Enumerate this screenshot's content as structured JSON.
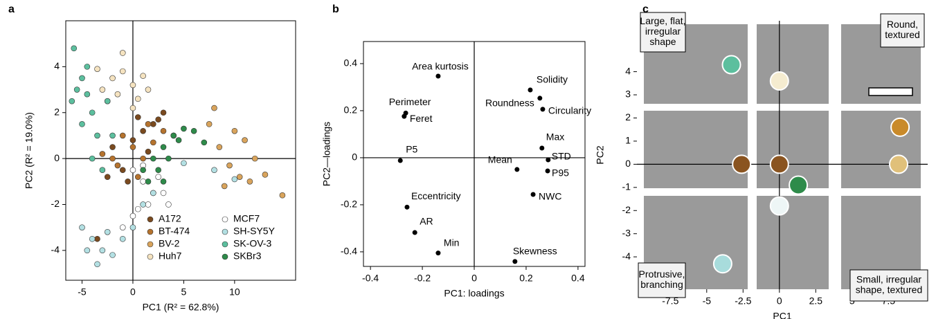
{
  "chart_data": [
    {
      "type": "scatter",
      "panel": "a",
      "xlabel": "PC1 (R² = 62.8%)",
      "ylabel": "PC2 (R² = 19.0%)",
      "xlim": [
        -6.6,
        16.0
      ],
      "ylim": [
        -5.3,
        6.0
      ],
      "xticks": [
        -5,
        0,
        5,
        10
      ],
      "yticks": [
        -4,
        -2,
        0,
        2,
        4
      ],
      "legend": "lower right",
      "series": [
        {
          "name": "A172",
          "color": "#7a4a1f",
          "x": [
            -2,
            -1,
            0,
            1,
            2,
            3,
            -0.5,
            -3.5,
            1.5,
            2.5,
            -2.5,
            0.5
          ],
          "y": [
            0.5,
            -0.5,
            0.8,
            1.2,
            1.5,
            2,
            -1,
            -3.5,
            0.3,
            1.7,
            -0.8,
            1.8
          ]
        },
        {
          "name": "BT-474",
          "color": "#b5732e",
          "x": [
            0,
            1,
            2,
            -1,
            -2,
            3,
            -3,
            0.5,
            1.5,
            -1.5,
            4
          ],
          "y": [
            0.5,
            0,
            0.7,
            1,
            0,
            1.2,
            0.2,
            -0.8,
            1.5,
            -0.3,
            1
          ]
        },
        {
          "name": "BV-2",
          "color": "#d9a45c",
          "x": [
            7.5,
            8.5,
            9.5,
            10.5,
            11.5,
            12,
            13,
            14.7,
            8,
            10,
            9,
            11
          ],
          "y": [
            1.5,
            0.5,
            -0.3,
            -0.8,
            -1,
            0,
            -0.7,
            -1.6,
            2.2,
            1.2,
            -1.2,
            0.8
          ]
        },
        {
          "name": "Huh7",
          "color": "#f5e3c0",
          "x": [
            -3,
            -2,
            -1,
            0,
            1,
            -2.5,
            -1.5,
            0.5,
            -3.5,
            -1,
            1.5,
            0
          ],
          "y": [
            3,
            3.5,
            3.8,
            3.2,
            3.6,
            2.5,
            2.8,
            2.6,
            3.9,
            4.6,
            3,
            2.2
          ]
        },
        {
          "name": "MCF7",
          "color": "#ffffff",
          "x": [
            0,
            1,
            2,
            1.5,
            0.5,
            2.5,
            3,
            0,
            -1,
            1,
            3.5
          ],
          "y": [
            -0.5,
            -1,
            -1.5,
            -2,
            -2.2,
            -0.8,
            -1.5,
            -2.5,
            -3,
            -0.3,
            -2
          ]
        },
        {
          "name": "SH-SY5Y",
          "color": "#b3e0e3",
          "x": [
            -5,
            -4,
            -3,
            -2,
            -1,
            0,
            -3.5,
            -4.5,
            -2.5,
            1,
            2,
            5,
            8,
            10
          ],
          "y": [
            -3,
            -3.5,
            -4,
            -4.2,
            -3.5,
            -3,
            -4.6,
            -4,
            -3.2,
            -2,
            -1.5,
            -0.2,
            -0.5,
            -0.9
          ]
        },
        {
          "name": "SK-OV-3",
          "color": "#5cbf9e",
          "x": [
            -6,
            -5.5,
            -5,
            -4.5,
            -4,
            -3.5,
            -5,
            -4,
            -3,
            -5.8,
            -2.5,
            -4.5,
            -2
          ],
          "y": [
            2.5,
            3,
            3.5,
            4,
            2,
            1,
            1.5,
            0,
            -0.5,
            4.8,
            2.5,
            2.8,
            1
          ]
        },
        {
          "name": "SKBr3",
          "color": "#2e8b4a",
          "x": [
            1,
            2,
            3,
            4,
            5,
            6,
            1.5,
            2.5,
            3.5,
            4.5,
            7,
            3
          ],
          "y": [
            -0.5,
            0,
            0.5,
            1,
            1.3,
            1.2,
            -1,
            -0.5,
            0,
            0.8,
            0.7,
            -1
          ]
        }
      ]
    },
    {
      "type": "scatter",
      "panel": "b",
      "xlabel": "PC1: loadings",
      "ylabel": "PC2—loadings",
      "xlim": [
        -0.427,
        0.427
      ],
      "ylim": [
        -0.462,
        0.494
      ],
      "xticks": [
        -0.4,
        -0.2,
        0,
        0.2,
        0.4
      ],
      "yticks": [
        -0.4,
        -0.2,
        0,
        0.2,
        0.4
      ],
      "series": [
        {
          "color": "#000000",
          "labels": [
            "Area kurtosis",
            "Perimeter",
            "Feret",
            "P5",
            "Eccentricity",
            "AR",
            "Min",
            "Solidity",
            "Roundness",
            "Circularity",
            "Max",
            "STD",
            "Mean",
            "P95",
            "NWC",
            "Skewness"
          ],
          "x": [
            -0.139,
            -0.264,
            -0.27,
            -0.285,
            -0.259,
            -0.229,
            -0.139,
            0.216,
            0.253,
            0.264,
            0.261,
            0.285,
            0.165,
            0.283,
            0.227,
            0.157
          ],
          "y": [
            0.347,
            0.19,
            0.176,
            -0.012,
            -0.21,
            -0.318,
            -0.405,
            0.288,
            0.253,
            0.206,
            0.041,
            -0.009,
            -0.05,
            -0.056,
            -0.156,
            -0.441
          ]
        }
      ]
    },
    {
      "type": "scatter",
      "panel": "c",
      "xlabel": "PC1",
      "ylabel": "PC2",
      "xlim": [
        -9.8,
        10.2
      ],
      "ylim": [
        -5.4,
        6.2
      ],
      "xticks": [
        -7.5,
        -5,
        -2.5,
        0,
        2.5,
        5,
        7.5
      ],
      "yticks": [
        -4,
        -3,
        -2,
        -1,
        0,
        1,
        2,
        3,
        4
      ],
      "series": [
        {
          "colors": [
            "#5cbf9e",
            "#f5ecd0",
            "#c98a2a",
            "#8a5420",
            "#8a5420",
            "#e0c07a",
            "#2e8b4a",
            "#eef6f6",
            "#a8dcdc"
          ],
          "x": [
            -3.3,
            0,
            8.3,
            -2.6,
            0,
            8.2,
            1.3,
            0,
            -3.9
          ],
          "y": [
            4.3,
            3.6,
            1.6,
            0,
            0,
            0,
            -0.9,
            -1.8,
            -4.3
          ]
        }
      ],
      "annotations": [
        [
          "Large, flat,",
          "irregular",
          "shape"
        ],
        [
          "Round,",
          "textured"
        ],
        [
          "Protrusive,",
          "branching"
        ],
        [
          "Small, irregular",
          "shape, textured"
        ]
      ]
    }
  ]
}
